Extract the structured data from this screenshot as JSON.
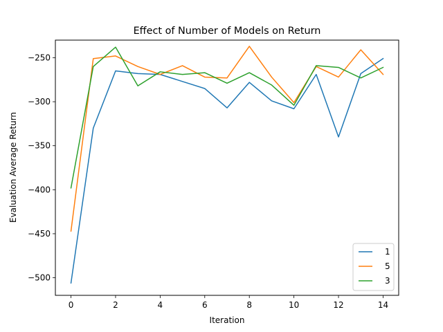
{
  "chart_data": {
    "type": "line",
    "title": "Effect of Number of Models on Return",
    "xlabel": "Iteration",
    "ylabel": "Evaluation Average Return",
    "x": [
      0,
      1,
      2,
      3,
      4,
      5,
      6,
      7,
      8,
      9,
      10,
      11,
      12,
      13,
      14
    ],
    "xlim": [
      -0.7,
      14.7
    ],
    "ylim": [
      -520,
      -230
    ],
    "xticks": [
      0,
      2,
      4,
      6,
      8,
      10,
      12,
      14
    ],
    "yticks": [
      -500,
      -450,
      -400,
      -350,
      -300,
      -250
    ],
    "series": [
      {
        "name": "1",
        "color": "#1f77b4",
        "values": [
          -506,
          -330,
          -265,
          -268,
          -269,
          -277,
          -285,
          -307,
          -278,
          -299,
          -308,
          -269,
          -340,
          -268,
          -251
        ]
      },
      {
        "name": "5",
        "color": "#ff7f0e",
        "values": [
          -447,
          -251,
          -248,
          -260,
          -269,
          -259,
          -272,
          -273,
          -237,
          -272,
          -301,
          -260,
          -272,
          -241,
          -269
        ]
      },
      {
        "name": "3",
        "color": "#2ca02c",
        "values": [
          -398,
          -260,
          -238,
          -282,
          -266,
          -269,
          -267,
          -279,
          -267,
          -281,
          -304,
          -259,
          -261,
          -273,
          -261
        ]
      }
    ],
    "grid": false,
    "legend_position": "lower-right"
  }
}
